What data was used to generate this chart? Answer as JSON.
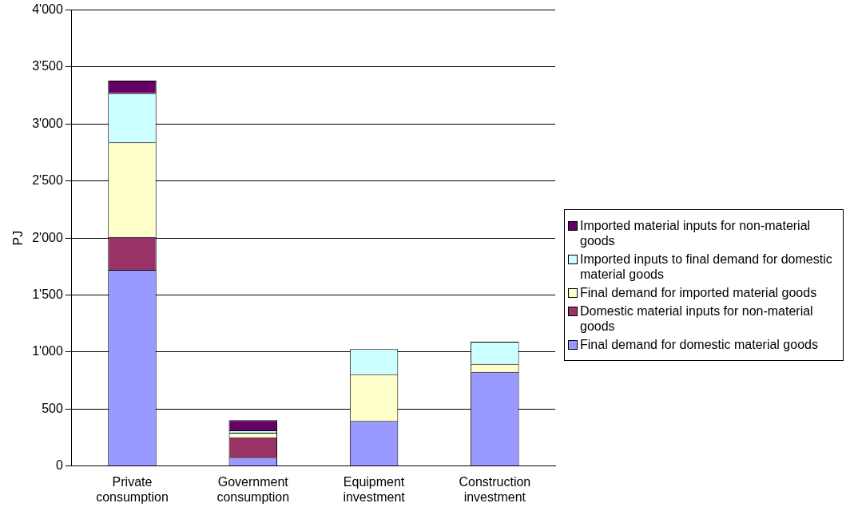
{
  "chart_data": {
    "type": "bar",
    "stacked": true,
    "ylabel": "PJ",
    "categories": [
      "Private consumption",
      "Government consumption",
      "Equipment investment",
      "Construction investment"
    ],
    "series": [
      {
        "name": "Final demand for domestic material goods",
        "color": "#9999ff",
        "values": [
          1720,
          72,
          395,
          825
        ]
      },
      {
        "name": "Domestic material inputs for non-material goods",
        "color": "#993366",
        "values": [
          290,
          180,
          0,
          0
        ]
      },
      {
        "name": "Final demand for imported material goods",
        "color": "#ffffcc",
        "values": [
          830,
          40,
          410,
          70
        ]
      },
      {
        "name": "Imported inputs to final demand for domestic material goods",
        "color": "#ccffff",
        "values": [
          430,
          20,
          220,
          195
        ]
      },
      {
        "name": "Imported material inputs for non-material goods",
        "color": "#660066",
        "values": [
          110,
          90,
          0,
          0
        ]
      }
    ],
    "ylim": [
      0,
      4000
    ],
    "yticks": [
      0,
      500,
      {
        "value": 1000,
        "label": "1'000"
      },
      {
        "value": 1500,
        "label": "1'500"
      },
      {
        "value": 2000,
        "label": "2'000"
      },
      {
        "value": 2500,
        "label": "2'500"
      },
      {
        "value": 3000,
        "label": "3'000"
      },
      {
        "value": 3500,
        "label": "3'500"
      },
      {
        "value": 4000,
        "label": "4'000"
      }
    ],
    "grid": "y",
    "legend": "right"
  }
}
